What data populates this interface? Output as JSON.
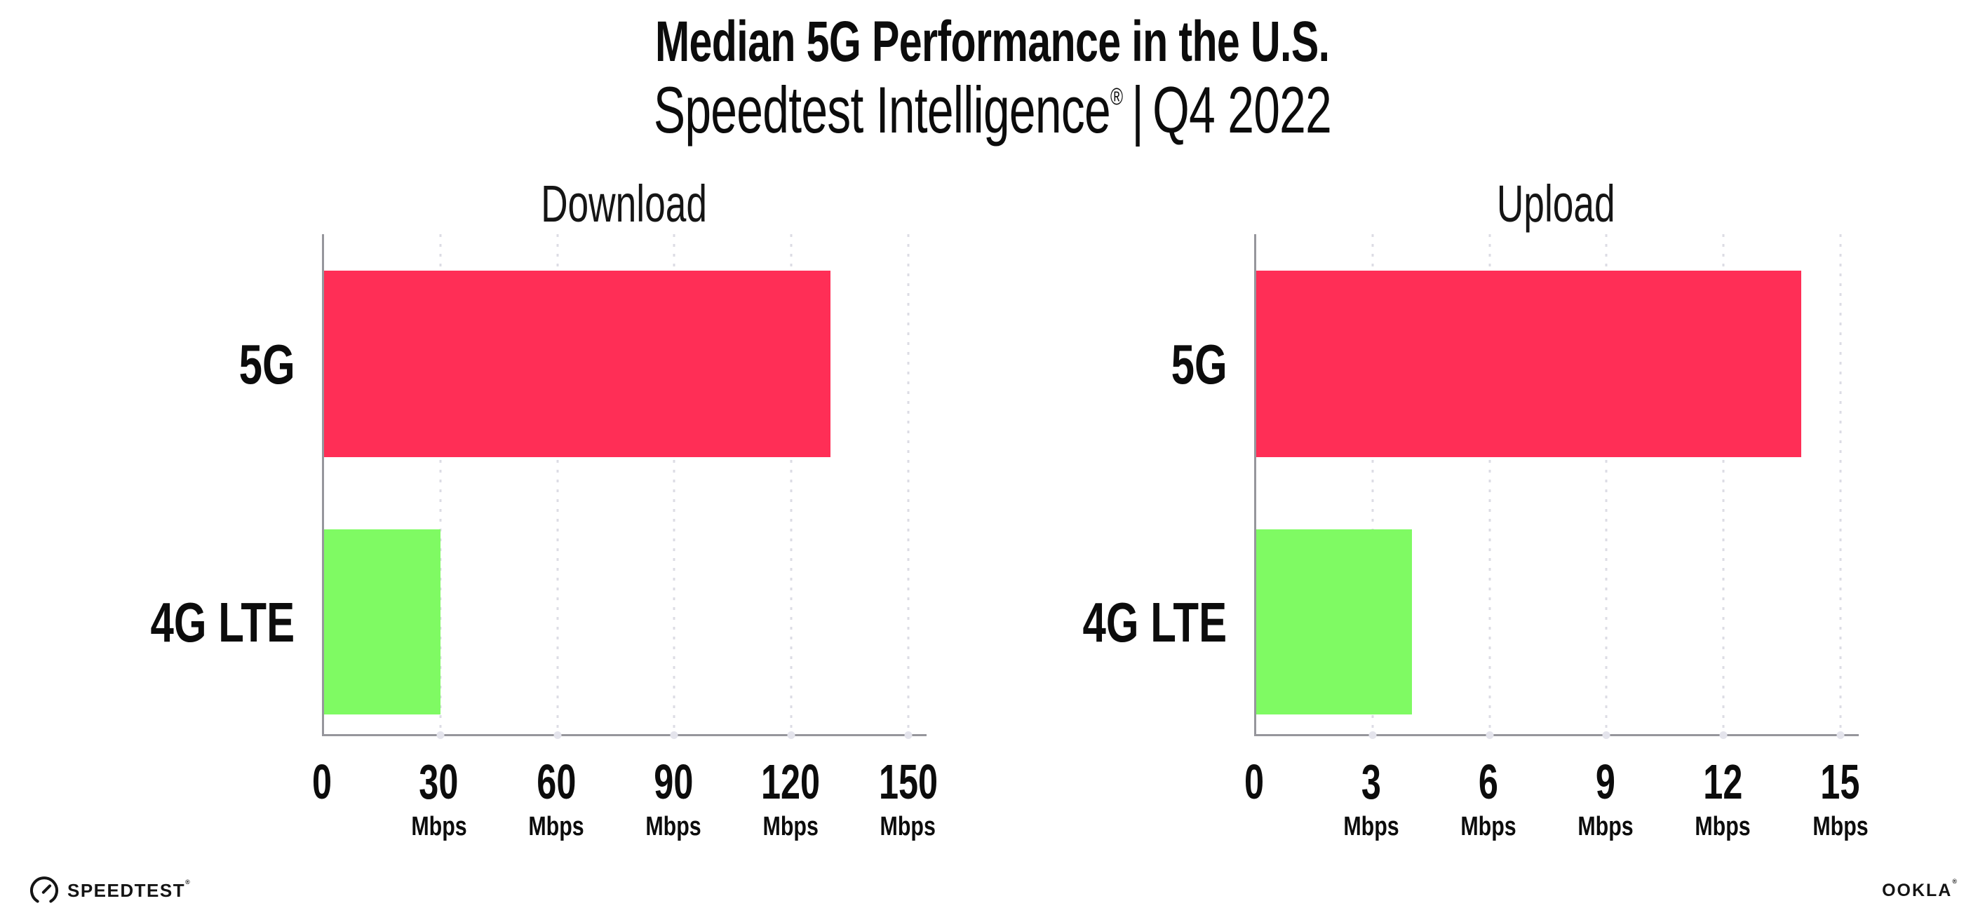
{
  "header": {
    "title": "Median 5G Performance in the U.S.",
    "subtitle_brand": "Speedtest Intelligence",
    "subtitle_registered": "®",
    "subtitle_separator": "|",
    "subtitle_period": "Q4 2022"
  },
  "colors": {
    "bar_5g": "#FF2E56",
    "bar_4g_lte": "#7FFA63",
    "axis": "#96969c",
    "gridline": "#dcdce4",
    "text": "#0c0c0c"
  },
  "chart_data": [
    {
      "type": "bar",
      "orientation": "horizontal",
      "title": "Download",
      "categories": [
        "5G",
        "4G LTE"
      ],
      "values": [
        130,
        30
      ],
      "colors": [
        "#FF2E56",
        "#7FFA63"
      ],
      "unit": "Mbps",
      "xticks": [
        0,
        30,
        60,
        90,
        120,
        150
      ],
      "xlim": [
        0,
        150
      ],
      "grid": "vertical-dotted",
      "legend": "none"
    },
    {
      "type": "bar",
      "orientation": "horizontal",
      "title": "Upload",
      "categories": [
        "5G",
        "4G LTE"
      ],
      "values": [
        14,
        4
      ],
      "colors": [
        "#FF2E56",
        "#7FFA63"
      ],
      "unit": "Mbps",
      "xticks": [
        0,
        3,
        6,
        9,
        12,
        15
      ],
      "xlim": [
        0,
        15
      ],
      "grid": "vertical-dotted",
      "legend": "none"
    }
  ],
  "footer": {
    "speedtest_label": "SPEEDTEST",
    "speedtest_mark": "®",
    "ookla_label": "OOKLA",
    "ookla_mark": "®"
  }
}
